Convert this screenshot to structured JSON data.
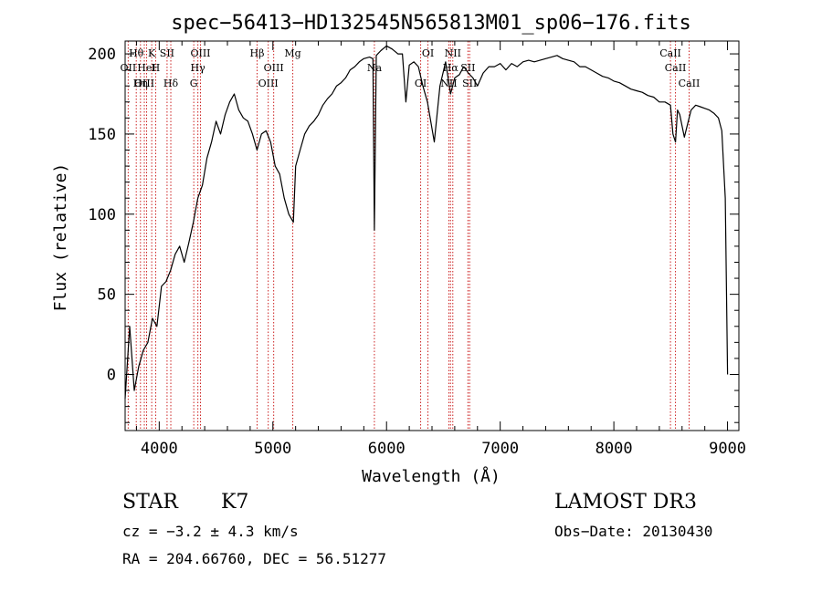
{
  "chart_data": {
    "type": "line",
    "title": "spec−56413−HD132545N565813M01_sp06−176.fits",
    "xlabel": "Wavelength (Å)",
    "ylabel": "Flux (relative)",
    "xlim": [
      3700,
      9100
    ],
    "ylim": [
      -35,
      208
    ],
    "x_ticks": [
      4000,
      5000,
      6000,
      7000,
      8000,
      9000
    ],
    "y_ticks": [
      0,
      50,
      100,
      150,
      200
    ],
    "grid": false,
    "legend": "none",
    "series": [
      {
        "name": "flux",
        "x": [
          3700,
          3740,
          3780,
          3820,
          3860,
          3900,
          3940,
          3980,
          4020,
          4060,
          4100,
          4140,
          4180,
          4220,
          4260,
          4300,
          4340,
          4380,
          4420,
          4460,
          4500,
          4540,
          4580,
          4620,
          4660,
          4700,
          4740,
          4780,
          4820,
          4860,
          4900,
          4940,
          4980,
          5020,
          5060,
          5100,
          5140,
          5180,
          5200,
          5240,
          5280,
          5320,
          5360,
          5400,
          5440,
          5480,
          5520,
          5560,
          5600,
          5640,
          5680,
          5720,
          5760,
          5800,
          5850,
          5880,
          5893,
          5910,
          5950,
          6000,
          6050,
          6100,
          6140,
          6170,
          6200,
          6240,
          6280,
          6320,
          6360,
          6420,
          6470,
          6520,
          6563,
          6600,
          6640,
          6680,
          6720,
          6760,
          6800,
          6850,
          6900,
          6950,
          7000,
          7050,
          7100,
          7150,
          7200,
          7250,
          7300,
          7350,
          7400,
          7450,
          7500,
          7550,
          7600,
          7650,
          7700,
          7750,
          7800,
          7850,
          7900,
          7950,
          8000,
          8050,
          8100,
          8150,
          8200,
          8250,
          8300,
          8350,
          8400,
          8450,
          8498,
          8520,
          8542,
          8560,
          8580,
          8600,
          8620,
          8662,
          8680,
          8720,
          8760,
          8800,
          8840,
          8880,
          8920,
          8950,
          8980,
          9000
        ],
        "values": [
          -15,
          30,
          -10,
          5,
          15,
          20,
          35,
          30,
          55,
          58,
          65,
          75,
          80,
          70,
          82,
          95,
          110,
          118,
          135,
          145,
          158,
          150,
          162,
          170,
          175,
          165,
          160,
          158,
          150,
          140,
          150,
          152,
          145,
          130,
          125,
          110,
          100,
          95,
          130,
          140,
          150,
          155,
          158,
          162,
          168,
          172,
          175,
          180,
          182,
          185,
          190,
          192,
          195,
          197,
          198,
          197,
          90,
          199,
          202,
          205,
          203,
          200,
          200,
          170,
          193,
          195,
          192,
          180,
          170,
          145,
          180,
          195,
          175,
          185,
          187,
          192,
          188,
          185,
          180,
          188,
          192,
          192,
          194,
          190,
          194,
          192,
          195,
          196,
          195,
          196,
          197,
          198,
          199,
          197,
          196,
          195,
          192,
          192,
          190,
          188,
          186,
          185,
          183,
          182,
          180,
          178,
          177,
          176,
          174,
          173,
          170,
          170,
          168,
          150,
          145,
          165,
          162,
          155,
          148,
          160,
          165,
          168,
          167,
          166,
          165,
          163,
          160,
          152,
          110,
          0
        ]
      }
    ],
    "annotations": [
      {
        "label": "Hθ",
        "x": 3798
      },
      {
        "label": "OII",
        "x": 3727
      },
      {
        "label": "OIII",
        "x": 3869
      },
      {
        "label": "K",
        "x": 3934
      },
      {
        "label": "HeI",
        "x": 3889
      },
      {
        "label": "Hη",
        "x": 3835
      },
      {
        "label": "SII",
        "x": 4069
      },
      {
        "label": "H",
        "x": 3969
      },
      {
        "label": "Hδ",
        "x": 4102
      },
      {
        "label": "OIII",
        "x": 4363
      },
      {
        "label": "Hγ",
        "x": 4340
      },
      {
        "label": "G",
        "x": 4304
      },
      {
        "label": "Hβ",
        "x": 4861
      },
      {
        "label": "OIII",
        "x": 5007
      },
      {
        "label": "OIII",
        "x": 4959
      },
      {
        "label": "Mg",
        "x": 5175
      },
      {
        "label": "Na",
        "x": 5893
      },
      {
        "label": "OI",
        "x": 6300
      },
      {
        "label": "OI",
        "x": 6364
      },
      {
        "label": "Hα",
        "x": 6563
      },
      {
        "label": "NII",
        "x": 6548
      },
      {
        "label": "NII",
        "x": 6583
      },
      {
        "label": "SII",
        "x": 6716
      },
      {
        "label": "SII",
        "x": 6731
      },
      {
        "label": "CaII",
        "x": 8498
      },
      {
        "label": "CaII",
        "x": 8542
      },
      {
        "label": "CaII",
        "x": 8662
      }
    ]
  },
  "info": {
    "class_label": "STAR",
    "subclass_label": "K7",
    "survey": "LAMOST DR3",
    "cz": "cz = −3.2 ± 4.3 km/s",
    "obs_date": "Obs−Date: 20130430",
    "coords": "RA = 204.66760, DEC =  56.51277"
  },
  "colors": {
    "line": "#000000",
    "marker": "#cc2222",
    "background": "#ffffff"
  }
}
